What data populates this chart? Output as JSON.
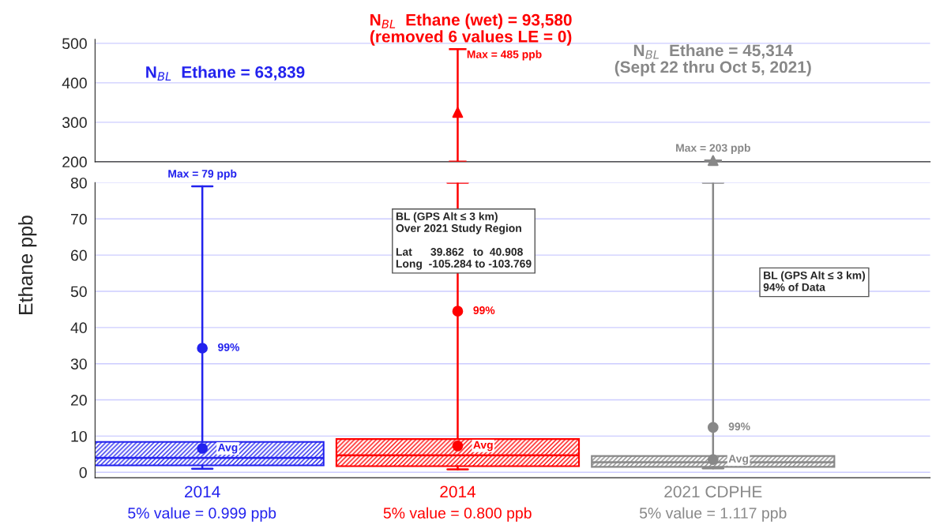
{
  "chart_data": [
    {
      "type": "scatter",
      "categories": [
        "2014",
        "2014",
        "2021 CDPHE"
      ],
      "ylim": [
        200,
        510
      ],
      "yticks": [
        200,
        300,
        400,
        500
      ],
      "tick_labels": "y",
      "grid": "y",
      "series": [
        {
          "marker": "triangle",
          "values": [
            null,
            325,
            203
          ],
          "errors": [
            null,
            [
              200,
              485
            ],
            [
              200,
              203
            ]
          ],
          "colors": [
            "#2222ee",
            "#ff0000",
            "#888888"
          ]
        }
      ],
      "annotations": [
        "N$_{BL}$  Ethane = 63,839",
        "N$_{BL}$  Ethane (wet) = 93,580\n(removed 6 values LE = 0)",
        "N$_{BL}$  Ethane = 45,314\n(Sept 22 thru Oct 5, 2021)",
        "Max = 485 ppb",
        {
          "text": "Max = 203 ppb",
          "x": "2021 CDPHE",
          "y": 203
        }
      ]
    },
    {
      "type": "box",
      "categories": [
        "2014",
        "2014",
        "2021 CDPHE"
      ],
      "ylim": [
        -1.5,
        80
      ],
      "yticks": [
        0,
        10,
        20,
        30,
        40,
        50,
        60,
        70,
        80
      ],
      "ylabel": "Ethane ppb",
      "grid": "y",
      "colors": [
        "#2222ee",
        "#ff0000",
        "#888888"
      ],
      "boxes": [
        {
          "low": 0.999,
          "q1": 1.9,
          "median": 4.0,
          "q3": 8.4,
          "high": 79
        },
        {
          "low": 0.8,
          "q1": 1.7,
          "median": 4.7,
          "q3": 9.2,
          "high": 80
        },
        {
          "low": 1.117,
          "q1": 1.5,
          "median": 2.8,
          "q3": 4.5,
          "high": 80
        }
      ],
      "series": [
        {
          "type": "scatter",
          "name": "99%",
          "marker": "circle",
          "values": [
            34.3,
            44.5,
            12.4
          ],
          "colors": [
            "#2222ee",
            "#ff0000",
            "#888888"
          ]
        },
        {
          "type": "scatter",
          "name": "Avg",
          "marker": "circle",
          "values": [
            6.6,
            7.3,
            3.5
          ],
          "colors": [
            "#2222ee",
            "#ff0000",
            "#888888"
          ]
        }
      ],
      "annotations": [
        {
          "text": "Max = 79 ppb",
          "x": "2014",
          "y": 79
        },
        "BL (GPS Alt ≤ 3 km)\nOver 2021 Study Region\n\nLat      39.862   to  40.908\nLong  -105.284 to -103.769",
        "BL (GPS Alt ≤ 3 km)\n94% of Data",
        "5% value = 0.999 ppb",
        "5% value = 0.800 ppb",
        "5% value = 1.117 ppb"
      ]
    }
  ]
}
